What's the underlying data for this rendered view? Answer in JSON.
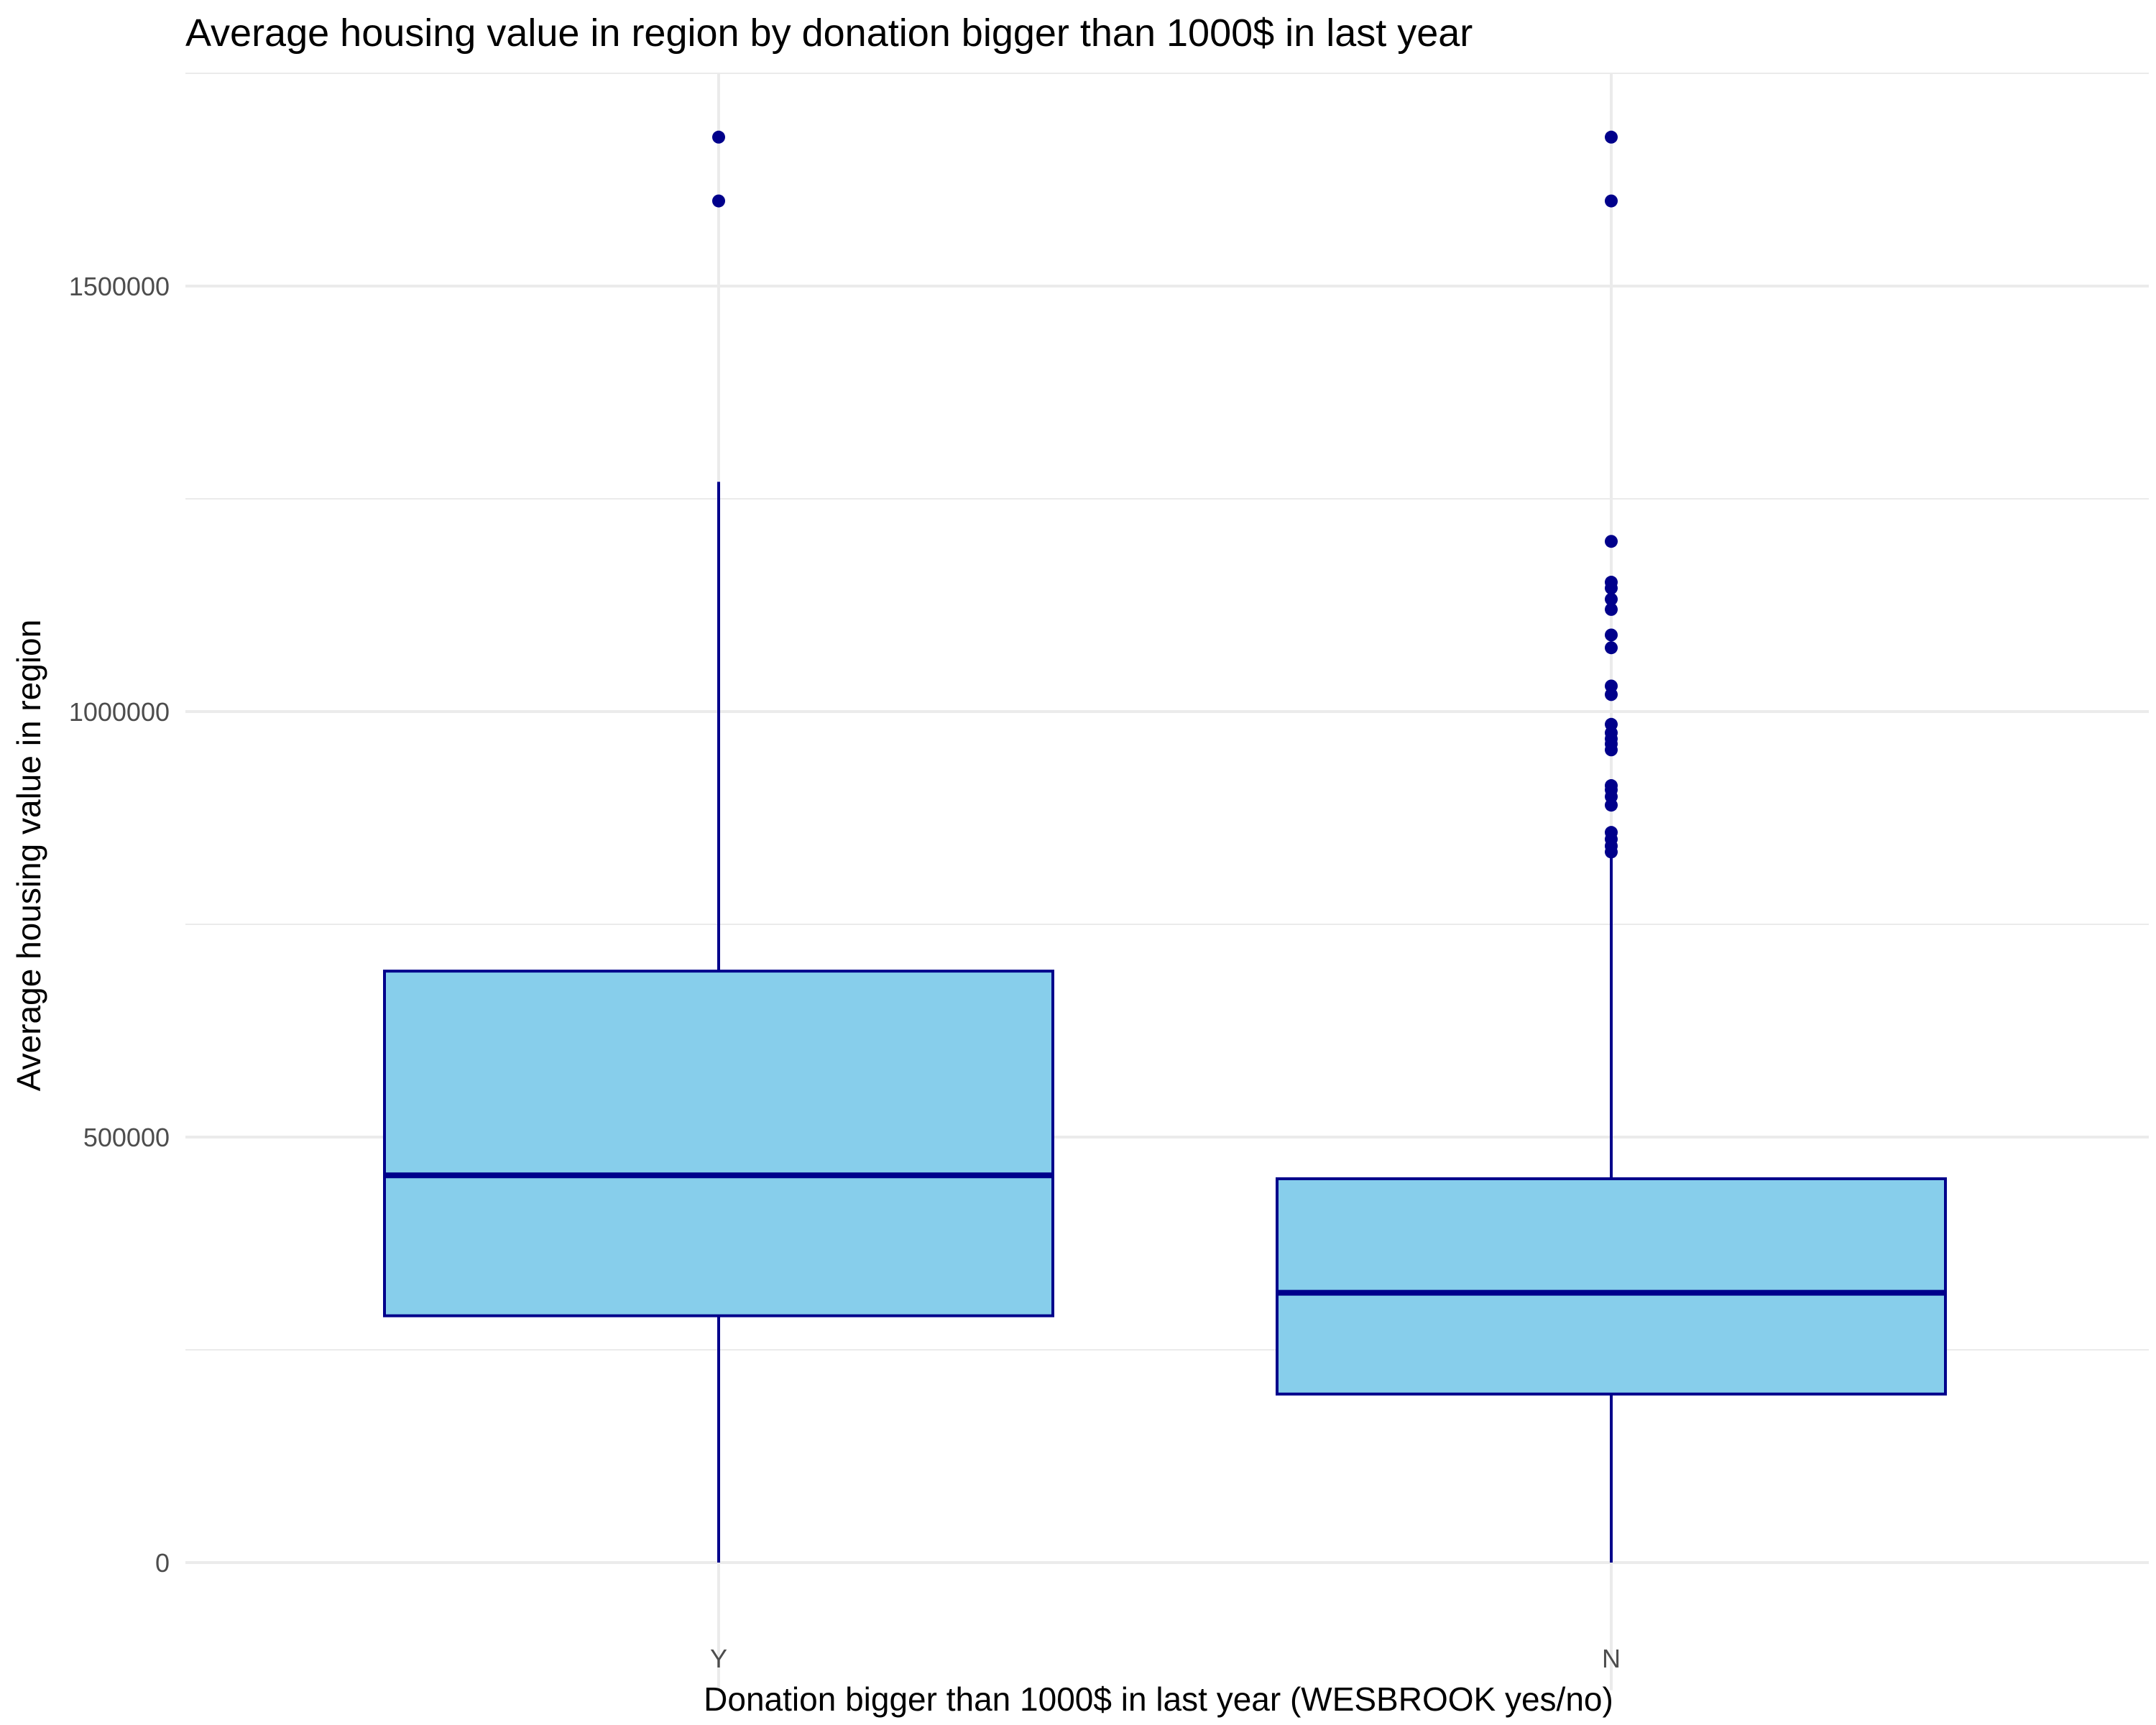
{
  "chart_data": {
    "type": "boxplot",
    "title": "Average housing value in region by donation bigger than 1000$ in last year",
    "xlabel": "Donation bigger than 1000$ in last year (WESBROOK yes/no)",
    "ylabel": "Average housing value in region",
    "categories": [
      "Y",
      "N"
    ],
    "y_ticks": [
      0,
      500000,
      1000000,
      1500000
    ],
    "y_tick_labels": [
      "0",
      "500000",
      "1000000",
      "1500000"
    ],
    "ylim": [
      -150000,
      1750000
    ],
    "grid": true,
    "colors": {
      "box_fill": "#87ceeb",
      "box_stroke": "#00008b",
      "outlier": "#00008b",
      "grid": "#ebebeb"
    },
    "boxes": [
      {
        "category": "Y",
        "min": 0,
        "q1": 290000,
        "median": 455000,
        "q3": 695000,
        "max": 1270000,
        "outliers": [
          1600000,
          1675000
        ]
      },
      {
        "category": "N",
        "min": 0,
        "q1": 198000,
        "median": 317000,
        "q3": 451000,
        "max": 830000,
        "outliers": [
          835000,
          842000,
          850000,
          858000,
          890000,
          900000,
          908000,
          913000,
          955000,
          962000,
          968000,
          975000,
          985000,
          1020000,
          1030000,
          1075000,
          1090000,
          1120000,
          1132000,
          1145000,
          1152000,
          1200000,
          1600000,
          1675000
        ]
      }
    ]
  }
}
